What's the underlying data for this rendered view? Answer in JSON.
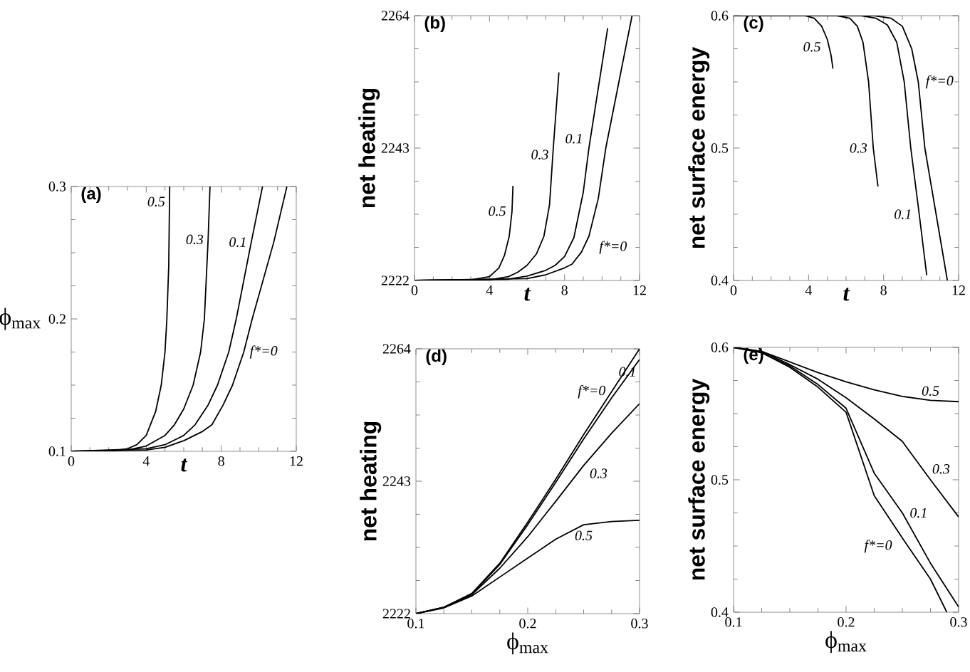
{
  "chart_data": [
    {
      "type": "line",
      "title": "(a)",
      "xlabel": "t",
      "ylabel": "ϕ$_{max}$",
      "xlim": [
        0,
        12
      ],
      "ylim": [
        0.1,
        0.3
      ],
      "xticks": [
        0,
        4,
        8,
        12
      ],
      "yticks": [
        0.1,
        0.2,
        0.3
      ],
      "series": [
        {
          "name": "f*=0",
          "color": "#000000",
          "x": [
            0,
            4,
            5,
            6,
            7,
            7.5,
            8.1,
            8.6,
            9.2,
            9.65,
            10.8,
            11.5
          ],
          "values": [
            0.1,
            0.101,
            0.103,
            0.108,
            0.115,
            0.12,
            0.135,
            0.15,
            0.175,
            0.2,
            0.258,
            0.3
          ]
        },
        {
          "name": "0.1",
          "color": "#000000",
          "x": [
            0,
            4,
            5,
            6,
            6.6,
            7.3,
            7.8,
            8.4,
            8.8,
            9.6,
            10.2
          ],
          "values": [
            0.1,
            0.102,
            0.105,
            0.112,
            0.12,
            0.135,
            0.15,
            0.175,
            0.2,
            0.258,
            0.3
          ]
        },
        {
          "name": "0.3",
          "color": "#000000",
          "x": [
            0,
            3,
            4,
            5,
            5.5,
            6,
            6.5,
            6.9,
            7.1,
            7.3,
            7.4
          ],
          "values": [
            0.1,
            0.101,
            0.104,
            0.112,
            0.12,
            0.132,
            0.15,
            0.175,
            0.2,
            0.26,
            0.3
          ]
        },
        {
          "name": "0.5",
          "color": "#000000",
          "x": [
            0,
            2,
            3,
            3.5,
            4,
            4.5,
            4.8,
            5.0,
            5.1,
            5.2,
            5.25
          ],
          "values": [
            0.1,
            0.1,
            0.102,
            0.105,
            0.112,
            0.13,
            0.15,
            0.175,
            0.2,
            0.24,
            0.3
          ]
        }
      ]
    },
    {
      "type": "line",
      "title": "(b)",
      "xlabel": "t",
      "ylabel": "net heating",
      "xlim": [
        0,
        12
      ],
      "ylim": [
        2222,
        2264
      ],
      "xticks": [
        0,
        4,
        8,
        12
      ],
      "yticks": [
        2222,
        2243,
        2264
      ],
      "series": [
        {
          "name": "f*=0",
          "color": "#000000",
          "x": [
            0,
            6,
            7,
            8,
            8.4,
            8.9,
            9.3,
            9.8,
            10.2,
            10.9,
            11.6
          ],
          "values": [
            2222,
            2222.3,
            2222.9,
            2224,
            2224.6,
            2226.5,
            2229,
            2235,
            2243,
            2253.5,
            2264
          ]
        },
        {
          "name": "0.1",
          "color": "#000000",
          "x": [
            0,
            5,
            6,
            7,
            7.5,
            8,
            8.5,
            9,
            9.3,
            9.8,
            10.3
          ],
          "values": [
            2222,
            2222.2,
            2222.7,
            2223.6,
            2224.4,
            2225.8,
            2228.8,
            2236,
            2243,
            2252.5,
            2262
          ]
        },
        {
          "name": "0.3",
          "color": "#000000",
          "x": [
            0,
            4,
            5,
            5.5,
            6,
            6.5,
            6.9,
            7.2,
            7.4,
            7.55,
            7.7
          ],
          "values": [
            2222,
            2222.1,
            2222.6,
            2223.3,
            2224.4,
            2226.2,
            2229,
            2234,
            2243,
            2249,
            2255
          ]
        },
        {
          "name": "0.5",
          "color": "#000000",
          "x": [
            0,
            3,
            4,
            4.5,
            4.8,
            5.05,
            5.2,
            5.25
          ],
          "values": [
            2222,
            2222.1,
            2222.6,
            2224,
            2226,
            2229,
            2233,
            2237
          ]
        }
      ]
    },
    {
      "type": "line",
      "title": "(c)",
      "xlabel": "t",
      "ylabel": "net surface energy",
      "xlim": [
        0,
        12
      ],
      "ylim": [
        0.4,
        0.6
      ],
      "xticks": [
        0,
        4,
        8,
        12
      ],
      "yticks": [
        0.4,
        0.5,
        0.6
      ],
      "series": [
        {
          "name": "f*=0",
          "color": "#000000",
          "x": [
            0,
            7.5,
            8.4,
            9,
            9.5,
            9.85,
            10.2,
            10.8,
            11.4
          ],
          "values": [
            0.6,
            0.6,
            0.598,
            0.592,
            0.575,
            0.55,
            0.5,
            0.45,
            0.4
          ]
        },
        {
          "name": "0.1",
          "color": "#000000",
          "x": [
            0,
            6.8,
            7.6,
            8.2,
            8.7,
            9.1,
            9.45,
            9.9,
            10.3
          ],
          "values": [
            0.6,
            0.6,
            0.598,
            0.593,
            0.58,
            0.55,
            0.5,
            0.45,
            0.404
          ]
        },
        {
          "name": "0.3",
          "color": "#000000",
          "x": [
            0,
            5.5,
            6.2,
            6.6,
            6.9,
            7.2,
            7.45,
            7.7
          ],
          "values": [
            0.6,
            0.6,
            0.598,
            0.592,
            0.58,
            0.55,
            0.5,
            0.471
          ]
        },
        {
          "name": "0.5",
          "color": "#000000",
          "x": [
            0,
            3.8,
            4.3,
            4.7,
            5.0,
            5.2,
            5.3
          ],
          "values": [
            0.6,
            0.6,
            0.598,
            0.592,
            0.582,
            0.57,
            0.56
          ]
        }
      ]
    },
    {
      "type": "line",
      "title": "(d)",
      "xlabel": "ϕ$_{max}$",
      "ylabel": "net heating",
      "xlim": [
        0.1,
        0.3
      ],
      "ylim": [
        2222,
        2264
      ],
      "xticks": [
        0.1,
        0.2,
        0.3
      ],
      "yticks": [
        2222,
        2243,
        2264
      ],
      "x": [
        0.1,
        0.125,
        0.15,
        0.175,
        0.2,
        0.225,
        0.25,
        0.275,
        0.3
      ],
      "series": [
        {
          "name": "f*=0",
          "color": "#000000",
          "values": [
            2222,
            2223,
            2225.2,
            2230,
            2236.5,
            2243.3,
            2250.4,
            2257.2,
            2264
          ]
        },
        {
          "name": "0.1",
          "color": "#000000",
          "values": [
            2222,
            2223,
            2225.1,
            2229.8,
            2236.1,
            2242.8,
            2249.7,
            2256.2,
            2262.3
          ]
        },
        {
          "name": "0.3",
          "color": "#000000",
          "values": [
            2222,
            2223,
            2225,
            2229.2,
            2234.2,
            2239.8,
            2245.5,
            2250.6,
            2255.3
          ]
        },
        {
          "name": "0.5",
          "color": "#000000",
          "values": [
            2222,
            2222.9,
            2224.8,
            2227.8,
            2230.8,
            2233.8,
            2236.1,
            2236.6,
            2236.8
          ]
        }
      ]
    },
    {
      "type": "line",
      "title": "(e)",
      "xlabel": "ϕ$_{max}$",
      "ylabel": "net surface energy",
      "xlim": [
        0.1,
        0.3
      ],
      "ylim": [
        0.4,
        0.6
      ],
      "xticks": [
        0.1,
        0.2,
        0.3
      ],
      "yticks": [
        0.4,
        0.5,
        0.6
      ],
      "series": [
        {
          "name": "f*=0",
          "color": "#000000",
          "x": [
            0.1,
            0.125,
            0.15,
            0.175,
            0.2,
            0.225,
            0.25,
            0.275,
            0.2895
          ],
          "values": [
            0.6,
            0.596,
            0.585,
            0.57,
            0.551,
            0.488,
            0.456,
            0.425,
            0.4
          ]
        },
        {
          "name": "0.1",
          "color": "#000000",
          "x": [
            0.1,
            0.125,
            0.15,
            0.175,
            0.2,
            0.225,
            0.25,
            0.275,
            0.3
          ],
          "values": [
            0.6,
            0.596,
            0.586,
            0.572,
            0.554,
            0.505,
            0.475,
            0.437,
            0.404
          ]
        },
        {
          "name": "0.3",
          "color": "#000000",
          "x": [
            0.1,
            0.125,
            0.15,
            0.175,
            0.2,
            0.225,
            0.25,
            0.275,
            0.3
          ],
          "values": [
            0.6,
            0.597,
            0.587,
            0.576,
            0.562,
            0.546,
            0.529,
            0.5,
            0.472
          ]
        },
        {
          "name": "0.5",
          "color": "#000000",
          "x": [
            0.1,
            0.125,
            0.15,
            0.175,
            0.2,
            0.225,
            0.25,
            0.275,
            0.3
          ],
          "values": [
            0.6,
            0.597,
            0.589,
            0.581,
            0.574,
            0.568,
            0.563,
            0.56,
            0.559
          ]
        }
      ]
    }
  ]
}
